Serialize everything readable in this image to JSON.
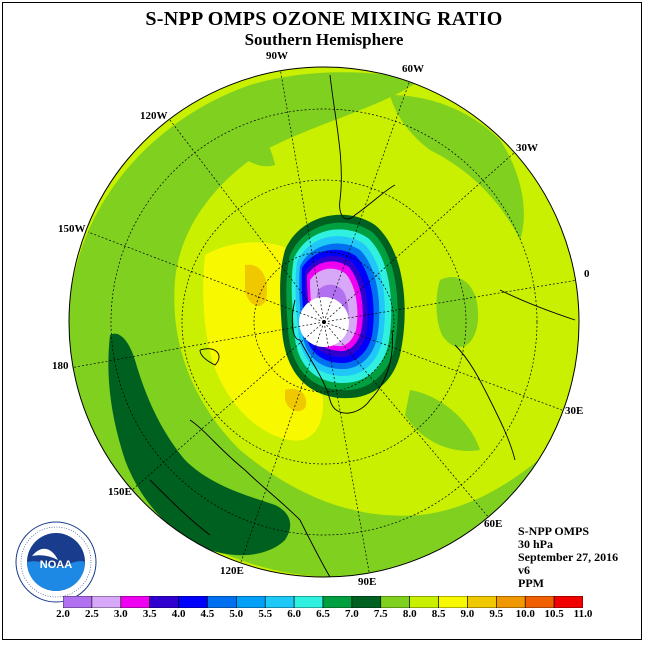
{
  "header": {
    "title": "S-NPP OMPS OZONE MIXING RATIO",
    "subtitle": "Southern Hemisphere"
  },
  "longitude_labels": [
    "90W",
    "60W",
    "30W",
    "0",
    "30E",
    "60E",
    "90E",
    "120E",
    "150E",
    "180",
    "150W",
    "120W"
  ],
  "info": {
    "instrument": "S-NPP OMPS",
    "level": "30 hPa",
    "date": "September 27, 2016",
    "version": "v6",
    "unit": "PPM"
  },
  "logo": {
    "text": "NOAA",
    "ring_text": "NATIONAL OCEANIC AND ATMOSPHERIC ADMINISTRATION · U.S. DEPARTMENT OF COMMERCE"
  },
  "colorbar": {
    "labels": [
      "2.0",
      "2.5",
      "3.0",
      "3.5",
      "4.0",
      "4.5",
      "5.0",
      "5.5",
      "6.0",
      "6.5",
      "7.0",
      "7.5",
      "8.0",
      "8.5",
      "9.0",
      "9.5",
      "10.0",
      "10.5",
      "11.0"
    ],
    "colors": [
      "#b070f0",
      "#d8a8f8",
      "#f000f0",
      "#3000d0",
      "#0000ff",
      "#0070f0",
      "#00a0f8",
      "#20c8f8",
      "#30f0e0",
      "#00a040",
      "#006020",
      "#80d020",
      "#c8f000",
      "#f8f800",
      "#f0c800",
      "#f09800",
      "#f06000",
      "#f00000",
      "#806040"
    ]
  },
  "colors": {
    "background_field": "#c8f000"
  }
}
